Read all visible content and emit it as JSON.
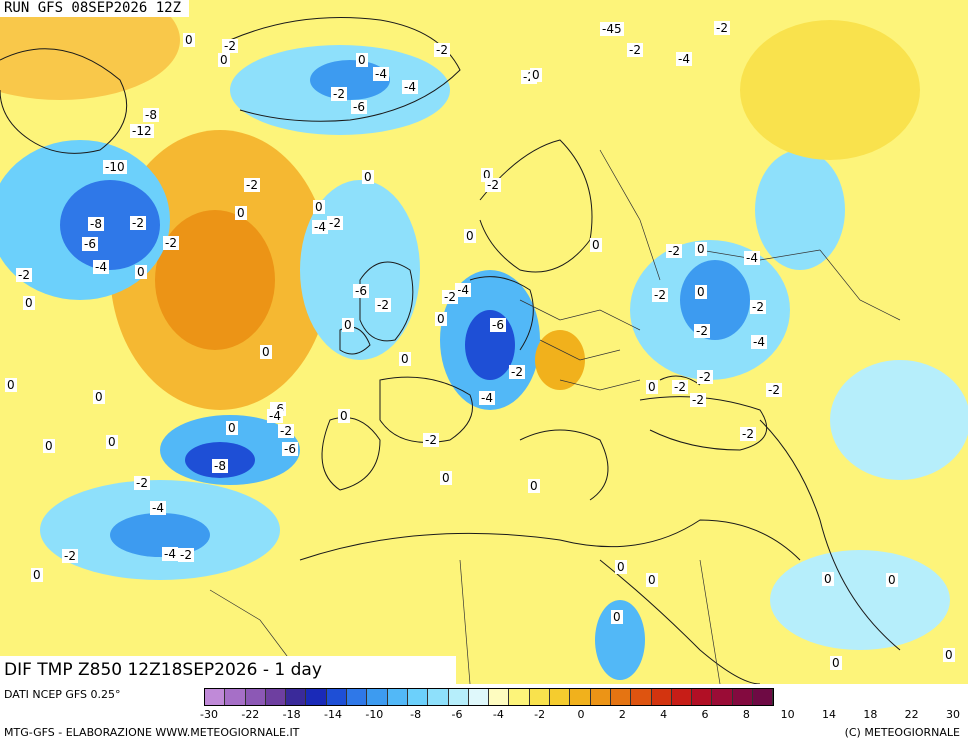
{
  "header": {
    "run_title": "RUN GFS 08SEP2026 12Z"
  },
  "map": {
    "title": "DIF TMP Z850 12Z18SEP2026 - 1 day",
    "contour_labels": [
      "0",
      "-2",
      "0",
      "-2",
      "-4",
      "0",
      "-2",
      "-6",
      "-4",
      "-2",
      "0",
      "-2",
      "-4",
      "-2",
      "-45",
      "-8",
      "-12",
      "-10",
      "-8",
      "-2",
      "-6",
      "-4",
      "0",
      "-2",
      "0",
      "-2",
      "-4",
      "-2",
      "-6",
      "-2",
      "0",
      "-4",
      "-6",
      "0",
      "-2",
      "-2",
      "-4",
      "-8",
      "-6",
      "-4",
      "-2",
      "-4",
      "-2",
      "0",
      "-2",
      "0",
      "-2",
      "-4",
      "-6",
      "0",
      "-2",
      "0",
      "0",
      "0",
      "0",
      "0",
      "0",
      "0",
      "0",
      "0",
      "0",
      "0",
      "0",
      "0",
      "0",
      "-2",
      "0",
      "0",
      "0",
      "-2",
      "0",
      "0",
      "0",
      "-2",
      "0",
      "-2",
      "0",
      "-4",
      "-2",
      "-4",
      "-2",
      "-2",
      "-2",
      "-2",
      "-2",
      "0",
      "0",
      "-2"
    ]
  },
  "colorbar": {
    "colors": [
      "#c08ad8",
      "#a66fc7",
      "#8c58b5",
      "#6e3fa0",
      "#3a2a9a",
      "#1a2ab8",
      "#1e4fd6",
      "#2f78e8",
      "#3d9bf0",
      "#52b8f7",
      "#6cd0fb",
      "#8ee0fb",
      "#b6eefb",
      "#dff8fb",
      "#fefcc0",
      "#fdf47a",
      "#f9e24d",
      "#f5cc2e",
      "#f1b11c",
      "#ec9416",
      "#e57412",
      "#de5410",
      "#d3340f",
      "#c71d17",
      "#b10f25",
      "#9a0c36",
      "#830a3f",
      "#6e0a44"
    ],
    "ticks": [
      "-30",
      "-22",
      "-18",
      "-14",
      "-10",
      "-8",
      "-6",
      "-4",
      "-2",
      "0",
      "2",
      "4",
      "6",
      "8",
      "10",
      "14",
      "18",
      "22",
      "30"
    ]
  },
  "footer": {
    "data_source": "DATI NCEP GFS 0.25°",
    "credit_left": "MTG-GFS - ELABORAZIONE WWW.METEOGIORNALE.IT",
    "credit_right": "(C) METEOGIORNALE"
  }
}
